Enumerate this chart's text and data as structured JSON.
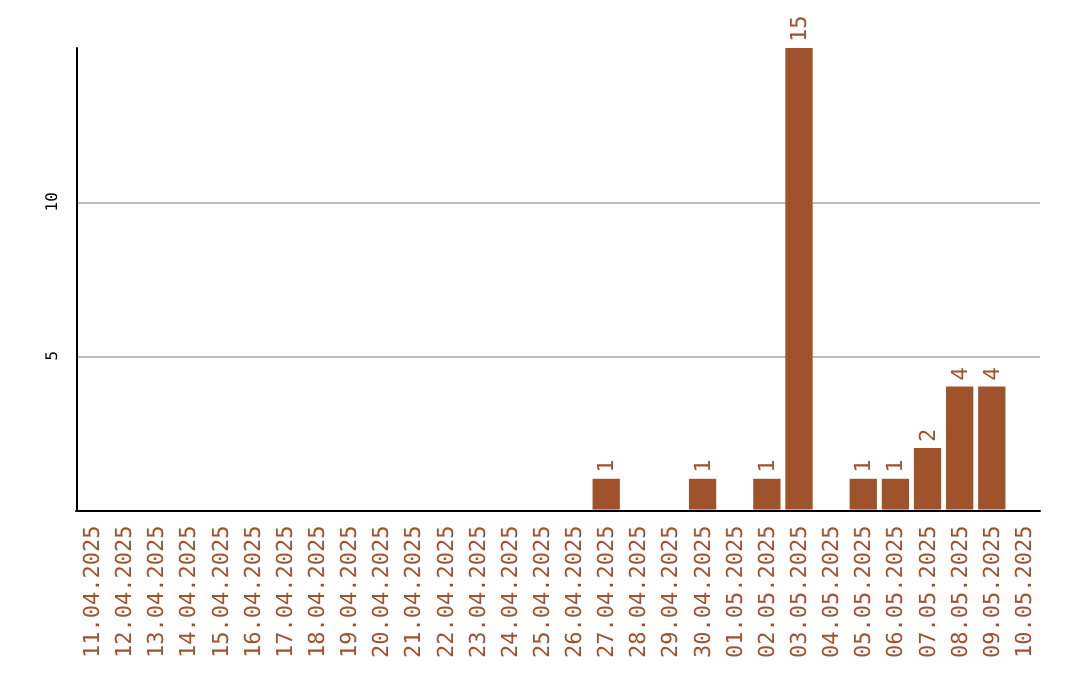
{
  "chart_data": {
    "type": "bar",
    "categories": [
      "11.04.2025",
      "12.04.2025",
      "13.04.2025",
      "14.04.2025",
      "15.04.2025",
      "16.04.2025",
      "17.04.2025",
      "18.04.2025",
      "19.04.2025",
      "20.04.2025",
      "21.04.2025",
      "22.04.2025",
      "23.04.2025",
      "24.04.2025",
      "25.04.2025",
      "26.04.2025",
      "27.04.2025",
      "28.04.2025",
      "29.04.2025",
      "30.04.2025",
      "01.05.2025",
      "02.05.2025",
      "03.05.2025",
      "04.05.2025",
      "05.05.2025",
      "06.05.2025",
      "07.05.2025",
      "08.05.2025",
      "09.05.2025",
      "10.05.2025"
    ],
    "values": [
      0,
      0,
      0,
      0,
      0,
      0,
      0,
      0,
      0,
      0,
      0,
      0,
      0,
      0,
      0,
      0,
      1,
      0,
      0,
      1,
      0,
      1,
      15,
      0,
      1,
      1,
      2,
      4,
      4,
      0
    ],
    "value_labels": [
      null,
      null,
      null,
      null,
      null,
      null,
      null,
      null,
      null,
      null,
      null,
      null,
      null,
      null,
      null,
      null,
      "1",
      null,
      null,
      "1",
      null,
      "1",
      "15",
      null,
      "1",
      "1",
      "2",
      "4",
      "4",
      null
    ],
    "color": "#a0522d",
    "ylim": [
      0,
      15
    ],
    "yticks": [
      5,
      10
    ],
    "grid": "y"
  }
}
